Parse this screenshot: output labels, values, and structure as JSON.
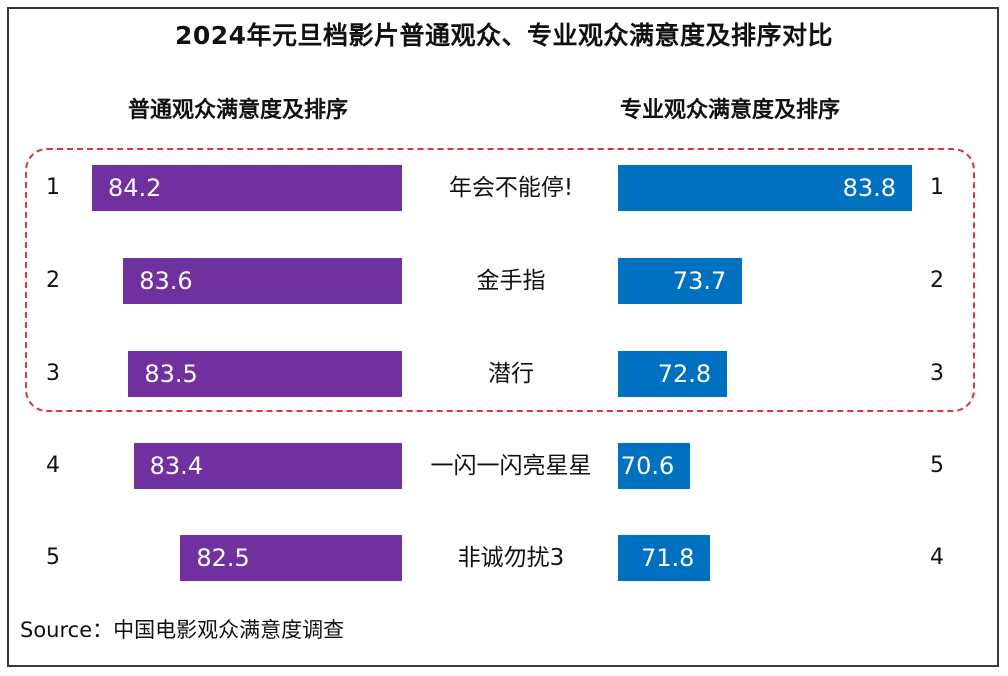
{
  "title": "2024年元旦档影片普通观众、专业观众满意度及排序对比",
  "headers": {
    "left": "普通观众满意度及排序",
    "right": "专业观众满意度及排序"
  },
  "source": "Source：中国电影观众满意度调查",
  "colors": {
    "public": "#7030a0",
    "professional": "#0070c0",
    "highlight": "#d9363e"
  },
  "chart_data": {
    "type": "bar",
    "categories": [
      "年会不能停!",
      "金手指",
      "潜行",
      "一闪一闪亮星星",
      "非诚勿扰3"
    ],
    "series": [
      {
        "name": "普通观众满意度及排序",
        "values": [
          84.2,
          83.6,
          83.5,
          83.4,
          82.5
        ],
        "ranks": [
          "1",
          "2",
          "3",
          "4",
          "5"
        ]
      },
      {
        "name": "专业观众满意度及排序",
        "values": [
          83.8,
          73.7,
          72.8,
          70.6,
          71.8
        ],
        "ranks": [
          "1",
          "2",
          "3",
          "5",
          "4"
        ]
      }
    ]
  }
}
